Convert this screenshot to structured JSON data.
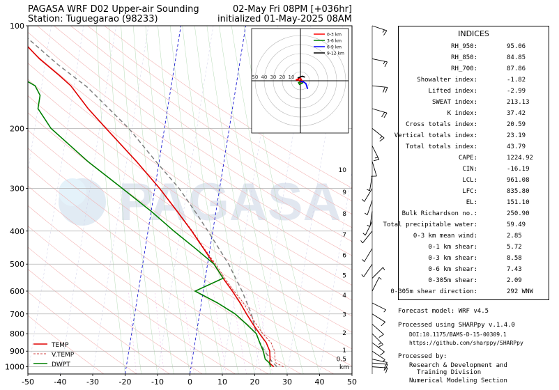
{
  "header": {
    "title_left": "PAGASA WRF D02 Upper-air Sounding",
    "station": "Station: Tuguegarao (98233)",
    "valid": "02-May Fri 08PM [+036hr]",
    "init": "initialized 01-May-2025 08AM"
  },
  "colors": {
    "temp": "#e00000",
    "dwpt": "#008000",
    "vtemp": "#d04040",
    "parcel": "#808080",
    "isotherm": "#0000cc",
    "hodo_0_3": "#ff0000",
    "hodo_3_6": "#008000",
    "hodo_6_9": "#0000ff",
    "hodo_9_12": "#000000"
  },
  "watermark": "PAGASA",
  "chart_data": {
    "type": "skew-t",
    "x_axis": {
      "range": [
        -50,
        50
      ],
      "ticks": [
        -50,
        -40,
        -30,
        -20,
        -10,
        0,
        10,
        20,
        30,
        40,
        50
      ]
    },
    "y_axis": {
      "range": [
        1050,
        100
      ],
      "scale": "log",
      "ticks": [
        1000,
        900,
        800,
        700,
        600,
        500,
        400,
        300,
        200,
        100
      ],
      "grid": true
    },
    "height_axis": {
      "labels": [
        "10",
        "9",
        "8",
        "7",
        "6",
        "5",
        "4",
        "3",
        "2",
        "1",
        "0.5"
      ],
      "unit": "km",
      "pressures": [
        265,
        308,
        356,
        410,
        471,
        540,
        617,
        703,
        795,
        895,
        950
      ]
    },
    "legend": {
      "position": "bottom-left",
      "entries": [
        {
          "name": "TEMP",
          "style": "solid",
          "color": "#e00000"
        },
        {
          "name": "V.TEMP",
          "style": "dashed",
          "color": "#d04040"
        },
        {
          "name": "DWPT",
          "style": "solid",
          "color": "#008000"
        }
      ]
    },
    "series": [
      {
        "name": "TEMP",
        "points": [
          [
            1000,
            25.5
          ],
          [
            975,
            24.0
          ],
          [
            950,
            24.0
          ],
          [
            900,
            23.5
          ],
          [
            850,
            22.0
          ],
          [
            800,
            19.5
          ],
          [
            750,
            17.0
          ],
          [
            700,
            14.5
          ],
          [
            650,
            12.0
          ],
          [
            600,
            9.0
          ],
          [
            550,
            5.5
          ],
          [
            500,
            2.0
          ],
          [
            450,
            -2.0
          ],
          [
            400,
            -6.5
          ],
          [
            350,
            -12.0
          ],
          [
            300,
            -18.5
          ],
          [
            250,
            -27.0
          ],
          [
            200,
            -38.0
          ],
          [
            175,
            -44.5
          ],
          [
            150,
            -51.0
          ],
          [
            140,
            -55.0
          ],
          [
            125,
            -62.0
          ],
          [
            110,
            -68.5
          ],
          [
            100,
            -73.0
          ]
        ]
      },
      {
        "name": "V.TEMP",
        "points": [
          [
            1000,
            28.5
          ],
          [
            975,
            26.0
          ],
          [
            950,
            25.5
          ],
          [
            900,
            25.0
          ],
          [
            850,
            23.5
          ],
          [
            800,
            20.5
          ],
          [
            750,
            18.0
          ],
          [
            700,
            15.5
          ],
          [
            650,
            13.0
          ],
          [
            600,
            9.5
          ],
          [
            550,
            6.0
          ],
          [
            500,
            2.5
          ],
          [
            450,
            -1.8
          ],
          [
            400,
            -6.3
          ],
          [
            350,
            -11.9
          ],
          [
            300,
            -18.5
          ],
          [
            250,
            -27.0
          ],
          [
            200,
            -38.0
          ],
          [
            175,
            -44.5
          ],
          [
            150,
            -51.0
          ],
          [
            140,
            -55.0
          ],
          [
            125,
            -62.0
          ],
          [
            110,
            -68.5
          ],
          [
            100,
            -73.0
          ]
        ]
      },
      {
        "name": "DWPT",
        "points": [
          [
            1000,
            24.5
          ],
          [
            975,
            24.0
          ],
          [
            950,
            22.5
          ],
          [
            900,
            21.5
          ],
          [
            850,
            20.0
          ],
          [
            800,
            18.5
          ],
          [
            750,
            15.0
          ],
          [
            700,
            11.0
          ],
          [
            650,
            5.0
          ],
          [
            600,
            -2.5
          ],
          [
            550,
            5.5
          ],
          [
            500,
            2.0
          ],
          [
            450,
            -4.5
          ],
          [
            400,
            -12.0
          ],
          [
            350,
            -20.0
          ],
          [
            300,
            -30.0
          ],
          [
            250,
            -42.0
          ],
          [
            200,
            -55.0
          ],
          [
            175,
            -60.0
          ],
          [
            160,
            -60.0
          ],
          [
            150,
            -62.0
          ],
          [
            140,
            -68.0
          ],
          [
            125,
            -74.0
          ],
          [
            110,
            -80.0
          ],
          [
            100,
            -85.0
          ]
        ]
      },
      {
        "name": "PARCEL",
        "points": [
          [
            1000,
            26.5
          ],
          [
            961,
            24.5
          ],
          [
            900,
            22.0
          ],
          [
            836,
            19.5
          ],
          [
            800,
            18.5
          ],
          [
            700,
            16.0
          ],
          [
            600,
            12.0
          ],
          [
            500,
            6.5
          ],
          [
            400,
            -1.5
          ],
          [
            350,
            -6.5
          ],
          [
            300,
            -12.5
          ],
          [
            250,
            -21.0
          ],
          [
            200,
            -31.0
          ],
          [
            151,
            -46.0
          ],
          [
            130,
            -56.0
          ],
          [
            110,
            -66.0
          ],
          [
            100,
            -72.0
          ]
        ]
      }
    ],
    "hodograph": {
      "rings": [
        10,
        20,
        30,
        40,
        50
      ],
      "ring_labels": [
        "50",
        "40",
        "30",
        "20",
        "10"
      ],
      "legend": [
        "0-3 km",
        "3-6 km",
        "6-9 km",
        "9-12 km"
      ],
      "traces": [
        {
          "layer": "0-3 km",
          "points": [
            [
              1,
              -2
            ],
            [
              -2,
              1
            ],
            [
              -5,
              1
            ],
            [
              0,
              3
            ],
            [
              3,
              -2
            ]
          ]
        },
        {
          "layer": "3-6 km",
          "points": [
            [
              3,
              -2
            ],
            [
              -1,
              -4
            ],
            [
              -2,
              -2
            ],
            [
              0,
              -1
            ]
          ]
        },
        {
          "layer": "6-9 km",
          "points": [
            [
              0,
              -1
            ],
            [
              3,
              -1
            ],
            [
              6,
              -3
            ],
            [
              8,
              -9
            ]
          ]
        },
        {
          "layer": "9-12 km",
          "points": [
            [
              -3,
              3
            ],
            [
              2,
              5
            ],
            [
              5,
              4
            ]
          ]
        }
      ]
    }
  },
  "indices": {
    "title": "INDICES",
    "rows": [
      {
        "label": "RH_950:",
        "value": "95.06"
      },
      {
        "label": "RH_850:",
        "value": "84.85"
      },
      {
        "label": "RH_700:",
        "value": "87.86"
      },
      {
        "label": "Showalter index:",
        "value": "-1.82"
      },
      {
        "label": "Lifted index:",
        "value": "-2.99"
      },
      {
        "label": "SWEAT index:",
        "value": "213.13"
      },
      {
        "label": "K index:",
        "value": "37.42"
      },
      {
        "label": "Cross totals index:",
        "value": "20.59"
      },
      {
        "label": "Vertical totals index:",
        "value": "23.19"
      },
      {
        "label": "Total totals index:",
        "value": "43.79"
      },
      {
        "label": "CAPE:",
        "value": "1224.92"
      },
      {
        "label": "CIN:",
        "value": "-16.19"
      },
      {
        "label": "LCL:",
        "value": "961.08"
      },
      {
        "label": "LFC:",
        "value": "835.80"
      },
      {
        "label": "EL:",
        "value": "151.10"
      },
      {
        "label": "Bulk Richardson no.:",
        "value": "250.90"
      },
      {
        "label": "Total precipitable water:",
        "value": "59.49"
      },
      {
        "label": "0-3 km mean wind:",
        "value": "2.85"
      },
      {
        "label": "0-1 km shear:",
        "value": "5.72"
      },
      {
        "label": "0-3 km shear:",
        "value": "8.58"
      },
      {
        "label": "0-6 km shear:",
        "value": "7.43"
      },
      {
        "label": "0-305m shear:",
        "value": "2.09"
      },
      {
        "label": "0-305m shear direction:",
        "value": "292 WNW"
      }
    ]
  },
  "footer": {
    "model": "Forecast model: WRF v4.5",
    "processed_using": "Processed using SHARPpy v.1.4.0",
    "doi": "DOI:10.1175/BAMS-D-15-00309.1",
    "url": "https://github.com/sharppy/SHARPpy",
    "processed_by": "Processed by:",
    "org1": "Research & Development and",
    "org2": "Training Division",
    "org3": "Numerical Modeling Section"
  },
  "wind_profile": [
    {
      "p": 100,
      "u": -12,
      "v": 4
    },
    {
      "p": 125,
      "u": -15,
      "v": 3
    },
    {
      "p": 150,
      "u": -20,
      "v": 2
    },
    {
      "p": 175,
      "u": -17,
      "v": 5
    },
    {
      "p": 200,
      "u": -10,
      "v": 8
    },
    {
      "p": 225,
      "u": -6,
      "v": 12
    },
    {
      "p": 250,
      "u": -3,
      "v": 10
    },
    {
      "p": 275,
      "u": 1,
      "v": 6
    },
    {
      "p": 300,
      "u": 3,
      "v": 5
    },
    {
      "p": 325,
      "u": 2,
      "v": 6
    },
    {
      "p": 350,
      "u": 1,
      "v": 7
    },
    {
      "p": 375,
      "u": 3,
      "v": 6
    },
    {
      "p": 400,
      "u": 4,
      "v": 5
    },
    {
      "p": 450,
      "u": 3,
      "v": 5
    },
    {
      "p": 500,
      "u": 2,
      "v": 3
    },
    {
      "p": 550,
      "u": -3,
      "v": -3
    },
    {
      "p": 600,
      "u": -2,
      "v": -4
    },
    {
      "p": 650,
      "u": -4,
      "v": 2
    },
    {
      "p": 700,
      "u": -8,
      "v": 5
    },
    {
      "p": 750,
      "u": -9,
      "v": 8
    },
    {
      "p": 800,
      "u": -10,
      "v": 10
    },
    {
      "p": 850,
      "u": -8,
      "v": 6
    },
    {
      "p": 900,
      "u": -6,
      "v": 4
    },
    {
      "p": 950,
      "u": -9,
      "v": 2
    },
    {
      "p": 975,
      "u": -12,
      "v": 1
    },
    {
      "p": 1000,
      "u": -14,
      "v": 1
    }
  ]
}
